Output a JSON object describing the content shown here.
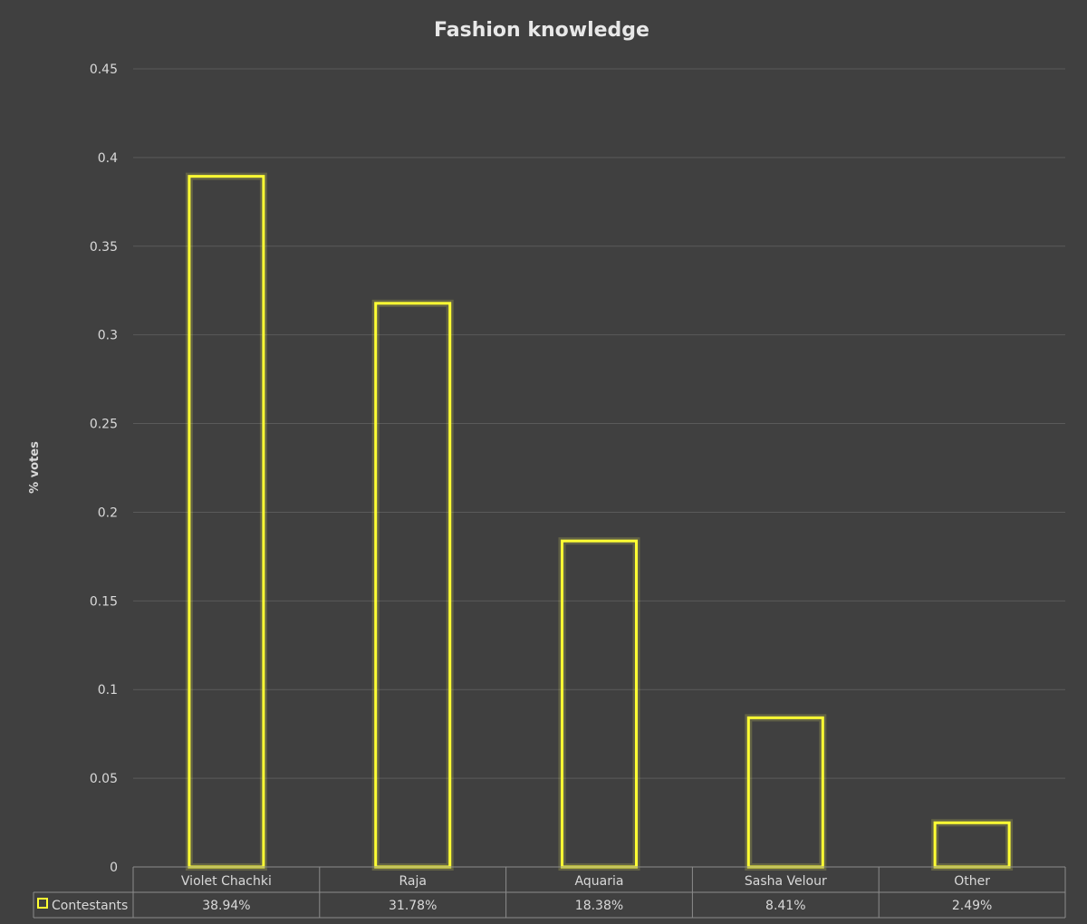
{
  "chart_data": {
    "type": "bar",
    "title": "Fashion knowledge",
    "ylabel": "% votes",
    "xlabel": "",
    "ylim": [
      0,
      0.45
    ],
    "yticks": [
      "0",
      "0.05",
      "0.1",
      "0.15",
      "0.2",
      "0.25",
      "0.3",
      "0.35",
      "0.4",
      "0.45"
    ],
    "grid": true,
    "categories": [
      "Violet Chachki",
      "Raja",
      "Aquaria",
      "Sasha Velour",
      "Other"
    ],
    "series": [
      {
        "name": "Contestants",
        "values": [
          0.3894,
          0.3178,
          0.1838,
          0.0841,
          0.0249
        ],
        "labels": [
          "38.94%",
          "31.78%",
          "18.38%",
          "8.41%",
          "2.49%"
        ],
        "color": "#ffff33"
      }
    ],
    "legend": "data-table-left"
  }
}
